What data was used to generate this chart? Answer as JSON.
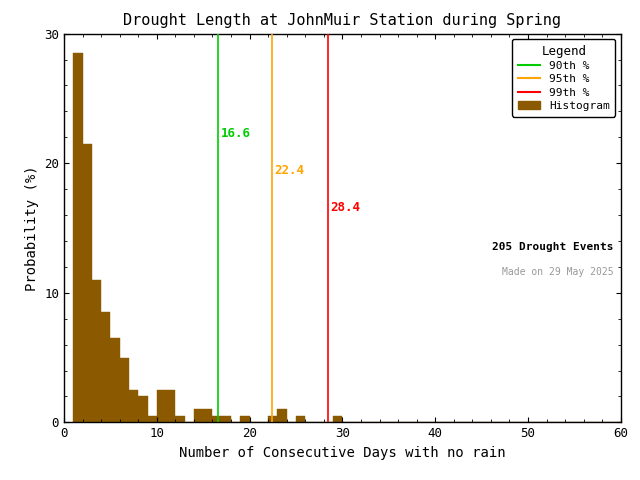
{
  "title": "Drought Length at JohnMuir Station during Spring",
  "xlabel": "Number of Consecutive Days with no rain",
  "ylabel": "Probability (%)",
  "xlim": [
    0,
    60
  ],
  "ylim": [
    0,
    30
  ],
  "bar_color": "#8B5A00",
  "bar_edge_color": "#8B5A00",
  "background_color": "white",
  "percentile_90_value": 16.6,
  "percentile_95_value": 22.4,
  "percentile_99_value": 28.4,
  "percentile_90_color": "#00CC00",
  "percentile_95_color": "#FFA500",
  "percentile_99_color": "#FF0000",
  "n_events": 205,
  "made_on": "Made on 29 May 2025",
  "legend_title": "Legend",
  "bin_width": 1,
  "bin_probabilities": [
    28.5,
    21.5,
    11.0,
    8.5,
    6.5,
    5.0,
    2.5,
    2.0,
    0.5,
    2.5,
    2.5,
    0.5,
    0.0,
    1.0,
    1.0,
    0.5,
    0.5,
    0.0,
    0.5,
    0.0,
    0.0,
    0.5,
    1.0,
    0.0,
    0.5,
    0.0,
    0.0,
    0.0,
    0.5,
    0.0,
    0.0,
    0.0,
    0.0,
    0.0,
    0.0,
    0.0,
    0.0,
    0.0,
    0.0,
    0.0,
    0.0,
    0.0,
    0.0,
    0.0,
    0.0,
    0.0,
    0.0,
    0.0,
    0.0,
    0.0,
    0.0,
    0.0,
    0.0,
    0.0,
    0.0,
    0.0,
    0.0,
    0.0,
    0.0,
    0.0
  ],
  "xticks": [
    0,
    10,
    20,
    30,
    40,
    50,
    60
  ],
  "yticks": [
    0,
    10,
    20,
    30
  ],
  "title_fontsize": 11,
  "axis_label_fontsize": 10,
  "tick_fontsize": 9,
  "legend_fontsize": 8,
  "legend_title_fontsize": 9,
  "annotation_fontsize": 9,
  "events_fontsize": 8,
  "made_on_fontsize": 7
}
